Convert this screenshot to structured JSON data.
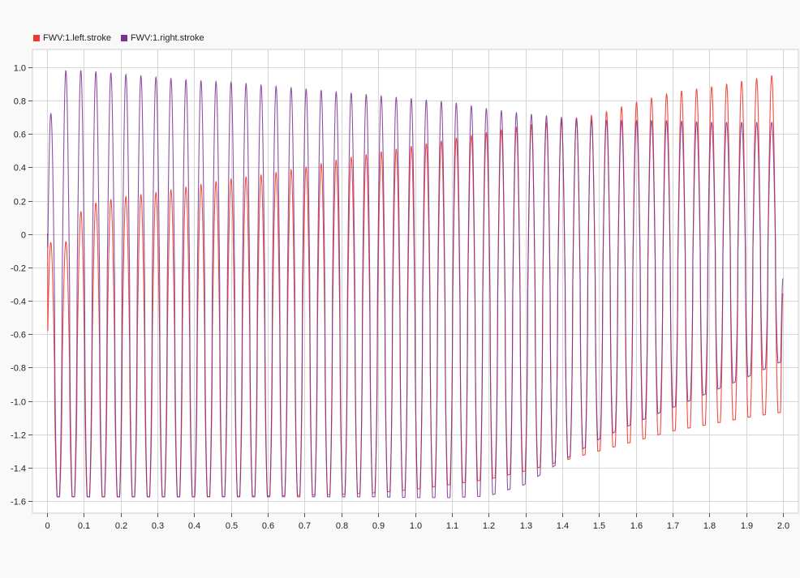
{
  "chart_data": {
    "type": "line",
    "title": "",
    "xlabel": "",
    "ylabel": "",
    "xlim": [
      0,
      2.0
    ],
    "ylim": [
      -1.6,
      1.0
    ],
    "grid": true,
    "legend_position": "top-left",
    "x_ticks": [
      "0",
      "0.1",
      "0.2",
      "0.3",
      "0.4",
      "0.5",
      "0.6",
      "0.7",
      "0.8",
      "0.9",
      "1.0",
      "1.1",
      "1.2",
      "1.3",
      "1.4",
      "1.5",
      "1.6",
      "1.7",
      "1.8",
      "1.9",
      "2.0"
    ],
    "y_ticks": [
      "1.0",
      "0.8",
      "0.6",
      "0.4",
      "0.2",
      "0",
      "-0.2",
      "-0.4",
      "-0.6",
      "-0.8",
      "-1.0",
      "-1.2",
      "-1.4",
      "-1.6"
    ],
    "frequency_hz": 24.5,
    "series": [
      {
        "name": "FWV:1.left.stroke",
        "color": "#ef3b2c",
        "start_value": 0,
        "end_value": -0.36,
        "peaks": {
          "x": [
            0.05,
            0.1,
            0.2,
            0.3,
            0.4,
            0.5,
            0.6,
            0.7,
            0.8,
            0.9,
            1.0,
            1.1,
            1.2,
            1.3,
            1.4,
            1.5,
            1.6,
            1.7,
            1.8,
            1.9,
            1.97
          ],
          "y": [
            -0.05,
            0.17,
            0.22,
            0.25,
            0.29,
            0.33,
            0.36,
            0.4,
            0.45,
            0.49,
            0.53,
            0.57,
            0.61,
            0.65,
            0.68,
            0.72,
            0.79,
            0.85,
            0.88,
            0.92,
            0.95
          ]
        },
        "troughs": {
          "x": [
            0.02,
            0.2,
            0.4,
            0.6,
            0.8,
            0.9,
            1.0,
            1.1,
            1.2,
            1.3,
            1.4,
            1.5,
            1.6,
            1.7,
            1.8,
            1.9,
            1.99
          ],
          "y": [
            -1.575,
            -1.575,
            -1.575,
            -1.57,
            -1.56,
            -1.55,
            -1.53,
            -1.5,
            -1.47,
            -1.42,
            -1.36,
            -1.3,
            -1.24,
            -1.18,
            -1.14,
            -1.1,
            -1.07
          ]
        }
      },
      {
        "name": "FWV:1.right.stroke",
        "color": "#7b3294",
        "start_value": 0,
        "end_value": -0.27,
        "peaks": {
          "x": [
            0.01,
            0.05,
            0.1,
            0.2,
            0.3,
            0.4,
            0.5,
            0.6,
            0.7,
            0.8,
            0.9,
            1.0,
            1.1,
            1.2,
            1.3,
            1.4,
            1.5,
            1.6,
            1.7,
            1.8,
            1.9,
            1.97
          ],
          "y": [
            0.72,
            0.98,
            0.98,
            0.96,
            0.94,
            0.92,
            0.91,
            0.89,
            0.87,
            0.85,
            0.83,
            0.81,
            0.79,
            0.75,
            0.72,
            0.7,
            0.68,
            0.68,
            0.68,
            0.67,
            0.67,
            0.67
          ]
        },
        "troughs": {
          "x": [
            0.02,
            0.2,
            0.4,
            0.6,
            0.8,
            0.9,
            1.0,
            1.1,
            1.2,
            1.3,
            1.4,
            1.5,
            1.6,
            1.7,
            1.8,
            1.9,
            1.99
          ],
          "y": [
            -1.575,
            -1.575,
            -1.575,
            -1.575,
            -1.575,
            -1.575,
            -1.58,
            -1.58,
            -1.57,
            -1.5,
            -1.36,
            -1.23,
            -1.13,
            -1.04,
            -0.95,
            -0.86,
            -0.77
          ]
        }
      }
    ]
  }
}
